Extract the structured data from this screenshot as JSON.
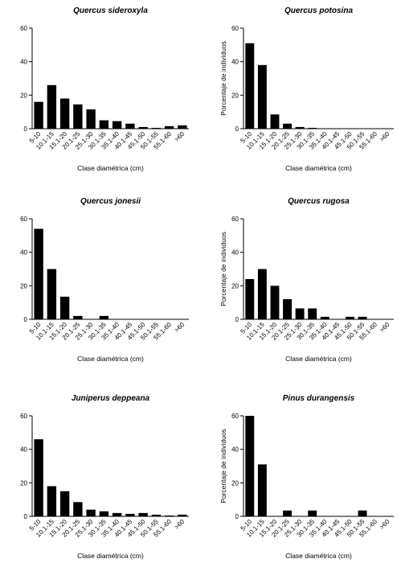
{
  "chart_data": [
    {
      "type": "bar",
      "title": "Quercus sideroxyla",
      "x_label": "Clase diamétrica (cm)",
      "categories": [
        "5-10",
        "10.1-15",
        "15.1-20",
        "20.1-25",
        "25.1-30",
        "30.1-35",
        "35.1-40",
        "40.1-45",
        "45.1-50",
        "50.1-55",
        "55.1-60",
        ">60"
      ],
      "values": [
        16,
        26,
        18,
        14.5,
        11.5,
        5,
        4.5,
        3,
        1,
        0.5,
        1.5,
        2
      ],
      "color": "#000000",
      "ylim": [
        0,
        60
      ],
      "yticks": [
        0,
        20,
        40,
        60
      ]
    },
    {
      "type": "bar",
      "title": "Quercus potosina",
      "x_label": "Clase diamétrica (cm)",
      "y_label": "Porcentaje de individuos",
      "categories": [
        "5-10",
        "10.1-15",
        "15.1-20",
        "20.1-25",
        "25.1-30",
        "30.1-35",
        "35.1-40",
        "40.1-45",
        "45.1-50",
        "50.1-55",
        "55.1-60",
        ">60"
      ],
      "values": [
        51,
        38,
        8.5,
        3,
        1,
        0.5,
        0,
        0,
        0,
        0,
        0,
        0
      ],
      "color": "#000000",
      "ylim": [
        0,
        60
      ],
      "yticks": [
        0,
        20,
        40,
        60
      ]
    },
    {
      "type": "bar",
      "title": "Quercus jonesii",
      "x_label": "Clase diamétrica (cm)",
      "categories": [
        "5-10",
        "10.1-15",
        "15.1-20",
        "20.1-25",
        "25.1-30",
        "30.1-35",
        "35.1-40",
        "40.1-45",
        "45.1-50",
        "50.1-55",
        "55.1-60",
        ">60"
      ],
      "values": [
        54,
        30,
        13.5,
        2,
        0,
        2,
        0,
        0,
        0,
        0,
        0,
        0
      ],
      "color": "#000000",
      "ylim": [
        0,
        60
      ],
      "yticks": [
        0,
        20,
        40,
        60
      ]
    },
    {
      "type": "bar",
      "title": "Quercus rugosa",
      "x_label": "Clase diamétrica (cm)",
      "y_label": "Porcentaje de individuos",
      "categories": [
        "5-10",
        "10.1-15",
        "15.1-20",
        "20.1-25",
        "25.1-30",
        "30.1-35",
        "35.1-40",
        "40.1-45",
        "45.1-50",
        "50.1-55",
        "55.1-60",
        ">60"
      ],
      "values": [
        24,
        30,
        20,
        12,
        6.5,
        6.5,
        1.5,
        0,
        1.5,
        1.5,
        0,
        0
      ],
      "color": "#000000",
      "ylim": [
        0,
        60
      ],
      "yticks": [
        0,
        20,
        40,
        60
      ]
    },
    {
      "type": "bar",
      "title": "Juniperus deppeana",
      "x_label": "Clase diamétrica (cm)",
      "categories": [
        "5-10",
        "10.1-15",
        "15.1-20",
        "20.1-25",
        "25.1-30",
        "30.1-35",
        "35.1-40",
        "40.1-45",
        "45.1-50",
        "50.1-55",
        "55.1-60",
        ">60"
      ],
      "values": [
        46,
        18,
        15,
        8.5,
        4,
        3,
        2,
        1.5,
        2,
        1,
        0.5,
        1
      ],
      "color": "#000000",
      "ylim": [
        0,
        60
      ],
      "yticks": [
        0,
        20,
        40,
        60
      ]
    },
    {
      "type": "bar",
      "title": "Pinus durangensis",
      "x_label": "Clase diamétrica (cm)",
      "y_label": "Porcentaje de individuos",
      "categories": [
        "5-10",
        "10.1-15",
        "15.1-20",
        "20.1-25",
        "25.1-30",
        "30.1-35",
        "35.1-40",
        "40.1-45",
        "45.1-50",
        "50.1-55",
        "55.1-60",
        ">60"
      ],
      "values": [
        60,
        31,
        0,
        3.5,
        0,
        3.5,
        0,
        0,
        0,
        3.5,
        0,
        0
      ],
      "color": "#000000",
      "ylim": [
        0,
        60
      ],
      "yticks": [
        0,
        20,
        40,
        60
      ]
    }
  ]
}
